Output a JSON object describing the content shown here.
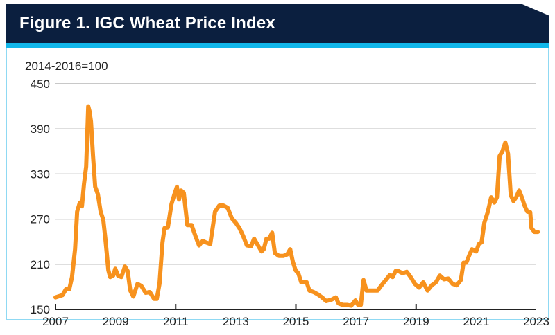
{
  "chart_data": {
    "type": "line",
    "title": "Figure 1. IGC Wheat Price Index",
    "ylabel": "2014-2016=100",
    "xlabel": "",
    "ylim": [
      150,
      450
    ],
    "xlim": [
      2007,
      2023
    ],
    "yticks": [
      "150",
      "210",
      "270",
      "330",
      "390",
      "450"
    ],
    "xticks": [
      "2007",
      "2009",
      "2011",
      "2013",
      "2015",
      "2017",
      "2019",
      "2021",
      "2023"
    ],
    "axis_ticks": [
      2007,
      2011,
      2015,
      2019
    ],
    "grid": true,
    "colors": {
      "line": "#f7921e",
      "header": "#0b1f3f",
      "accent": "#12b7ea"
    },
    "series": [
      {
        "name": "IGC Wheat Price Index",
        "x": [
          2007.0,
          2007.23,
          2007.35,
          2007.46,
          2007.55,
          2007.65,
          2007.72,
          2007.81,
          2007.88,
          2007.95,
          2008.02,
          2008.09,
          2008.13,
          2008.18,
          2008.25,
          2008.32,
          2008.41,
          2008.5,
          2008.59,
          2008.66,
          2008.76,
          2008.82,
          2008.92,
          2008.99,
          2009.08,
          2009.19,
          2009.31,
          2009.4,
          2009.49,
          2009.59,
          2009.73,
          2009.86,
          2010.0,
          2010.14,
          2010.28,
          2010.37,
          2010.46,
          2010.56,
          2010.63,
          2010.74,
          2010.86,
          2010.95,
          2011.04,
          2011.11,
          2011.18,
          2011.27,
          2011.39,
          2011.53,
          2011.67,
          2011.78,
          2011.9,
          2012.01,
          2012.15,
          2012.31,
          2012.45,
          2012.59,
          2012.73,
          2012.87,
          2013.0,
          2013.12,
          2013.24,
          2013.37,
          2013.51,
          2013.61,
          2013.74,
          2013.86,
          2013.93,
          2014.02,
          2014.11,
          2014.21,
          2014.3,
          2014.44,
          2014.58,
          2014.71,
          2014.81,
          2014.9,
          2014.99,
          2015.08,
          2015.18,
          2015.27,
          2015.36,
          2015.45,
          2015.59,
          2015.73,
          2015.87,
          2016.01,
          2016.19,
          2016.33,
          2016.42,
          2016.56,
          2016.7,
          2016.84,
          2016.98,
          2017.07,
          2017.16,
          2017.25,
          2017.35,
          2017.44,
          2017.58,
          2017.72,
          2017.85,
          2017.99,
          2018.13,
          2018.22,
          2018.32,
          2018.41,
          2018.55,
          2018.69,
          2018.82,
          2018.96,
          2019.1,
          2019.24,
          2019.38,
          2019.52,
          2019.66,
          2019.79,
          2019.93,
          2020.07,
          2020.21,
          2020.35,
          2020.49,
          2020.58,
          2020.67,
          2020.76,
          2020.86,
          2021.0,
          2021.09,
          2021.18,
          2021.27,
          2021.39,
          2021.5,
          2021.6,
          2021.69,
          2021.78,
          2021.87,
          2021.97,
          2022.06,
          2022.15,
          2022.24,
          2022.33,
          2022.43,
          2022.52,
          2022.61,
          2022.7,
          2022.8,
          2022.84,
          2022.94,
          2023.05
        ],
        "y": [
          166,
          169,
          177,
          177,
          193,
          230,
          280,
          292,
          287,
          317,
          340,
          420,
          414,
          400,
          354,
          313,
          303,
          280,
          269,
          244,
          202,
          193,
          195,
          204,
          195,
          193,
          207,
          201,
          175,
          167,
          184,
          181,
          172,
          173,
          164,
          164,
          184,
          239,
          258,
          259,
          290,
          302,
          313,
          296,
          308,
          305,
          262,
          262,
          246,
          235,
          241,
          239,
          237,
          280,
          288,
          288,
          285,
          271,
          265,
          258,
          248,
          235,
          234,
          244,
          235,
          227,
          230,
          244,
          244,
          252,
          225,
          221,
          221,
          223,
          230,
          213,
          202,
          198,
          186,
          186,
          186,
          175,
          173,
          170,
          166,
          161,
          163,
          166,
          158,
          156,
          156,
          155,
          162,
          156,
          156,
          189,
          175,
          175,
          175,
          175,
          182,
          189,
          196,
          193,
          201,
          201,
          198,
          200,
          193,
          184,
          179,
          186,
          175,
          182,
          186,
          195,
          190,
          191,
          184,
          182,
          189,
          212,
          212,
          221,
          230,
          227,
          237,
          239,
          265,
          280,
          299,
          292,
          299,
          354,
          360,
          372,
          357,
          302,
          294,
          299,
          308,
          299,
          288,
          280,
          279,
          258,
          253,
          253
        ]
      }
    ]
  }
}
